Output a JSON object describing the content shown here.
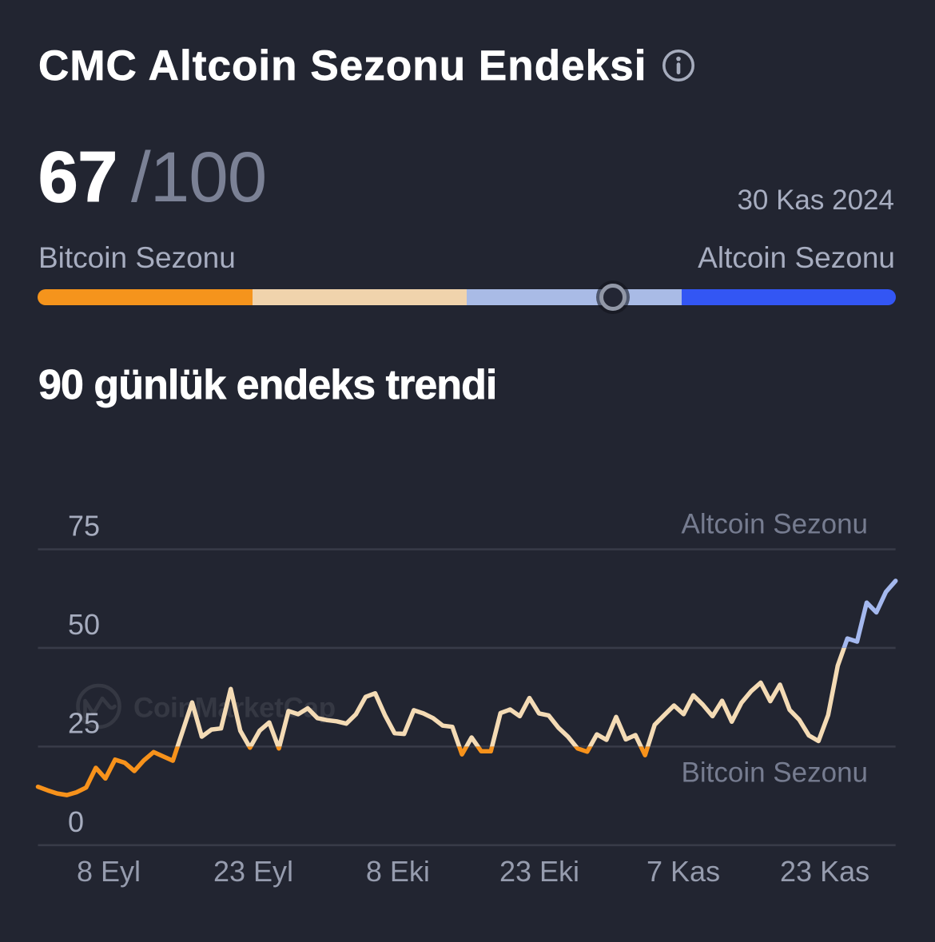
{
  "header": {
    "title": "CMC Altcoin Sezonu Endeksi"
  },
  "score": {
    "value": "67",
    "max": "/100",
    "date": "30 Kas 2024"
  },
  "gauge": {
    "left_label": "Bitcoin Sezonu",
    "right_label": "Altcoin Sezonu",
    "value": 67,
    "min": 0,
    "max": 100,
    "segment_colors": [
      "#f5941c",
      "#f0d3ac",
      "#a9bbe6",
      "#3356f4"
    ]
  },
  "trend": {
    "heading": "90 günlük endeks trendi"
  },
  "chart_data": {
    "type": "line",
    "title": "90 günlük endeks trendi",
    "ylabel": "",
    "xlabel": "",
    "ylim": [
      0,
      82
    ],
    "y_ticks": [
      0,
      25,
      50,
      75
    ],
    "x_tick_labels": [
      "8 Eyl",
      "23 Eyl",
      "8 Eki",
      "23 Eki",
      "7 Kas",
      "23 Kas"
    ],
    "x_tick_days": [
      7.34,
      22.35,
      37.35,
      52.04,
      66.97,
      81.65
    ],
    "days_total": 90,
    "zone_label_top": "Altcoin Sezonu",
    "zone_label_bottom": "Bitcoin Sezonu",
    "zone_thresholds": {
      "bitcoin_below": 25,
      "altcoin_above": 50
    },
    "zone_colors": {
      "bitcoin": "#f7921b",
      "neutral": "#f4dbb5",
      "altcoin": "#a4b8ee"
    },
    "grid": true,
    "legend_position": "none",
    "watermark": "CoinMarketCap",
    "values": [
      14.8,
      13.9,
      13.1,
      12.7,
      13.4,
      14.6,
      19.6,
      16.9,
      21.7,
      20.9,
      18.8,
      21.5,
      23.6,
      22.5,
      21.4,
      28.8,
      36.2,
      27.5,
      29.3,
      29.6,
      39.6,
      29.0,
      24.7,
      29.0,
      31.1,
      24.5,
      34.0,
      33.2,
      34.7,
      32.2,
      31.7,
      31.4,
      30.8,
      33.2,
      37.6,
      38.5,
      33.0,
      28.4,
      28.2,
      34.2,
      33.4,
      32.2,
      30.3,
      30.0,
      23.0,
      27.3,
      23.8,
      23.8,
      33.5,
      34.4,
      32.7,
      37.3,
      33.4,
      32.9,
      29.8,
      27.5,
      24.5,
      23.7,
      28.1,
      26.7,
      32.5,
      26.8,
      27.9,
      22.8,
      30.5,
      33.0,
      35.4,
      33.2,
      38.0,
      35.6,
      32.7,
      36.6,
      31.3,
      36.1,
      39.0,
      41.2,
      36.5,
      40.7,
      34.3,
      31.8,
      27.8,
      26.4,
      33.0,
      45.5,
      52.4,
      51.6,
      61.5,
      59.0,
      64.2,
      67.0
    ]
  }
}
